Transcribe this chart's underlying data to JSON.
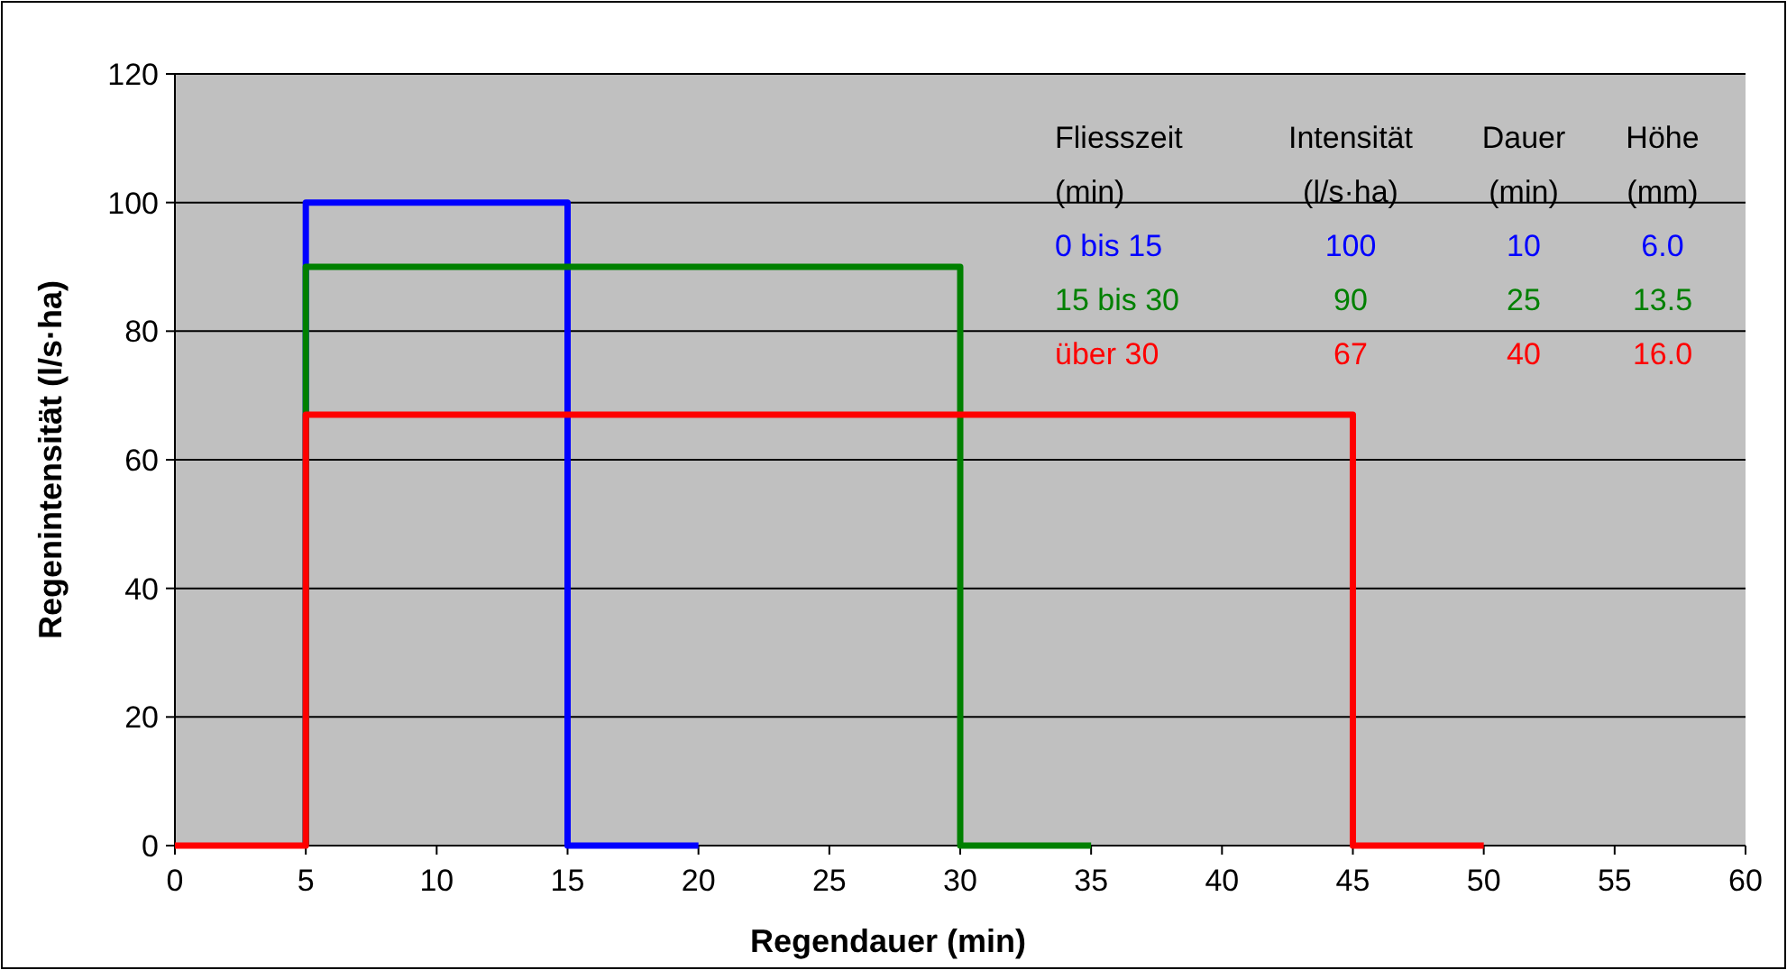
{
  "chart_data": {
    "type": "line",
    "xlabel": "Regendauer (min)",
    "ylabel": "Regenintensität (l/s·ha)",
    "xlim": [
      0,
      60
    ],
    "xticks": [
      0,
      5,
      10,
      15,
      20,
      25,
      30,
      35,
      40,
      45,
      50,
      55,
      60
    ],
    "ylim": [
      0,
      120
    ],
    "yticks": [
      0,
      20,
      40,
      60,
      80,
      100,
      120
    ],
    "grid": "y",
    "series": [
      {
        "color": "#0000ff",
        "x": [
          5,
          5,
          15,
          15,
          20
        ],
        "values": [
          0,
          100,
          100,
          0,
          0
        ]
      },
      {
        "color": "#008000",
        "x": [
          5,
          5,
          30,
          30,
          35
        ],
        "values": [
          0,
          90,
          90,
          0,
          0
        ]
      },
      {
        "color": "#ff0000",
        "x": [
          0,
          5,
          5,
          45,
          45,
          50
        ],
        "values": [
          0,
          0,
          67,
          67,
          0,
          0
        ]
      }
    ],
    "annotations": [
      "Fliesszeit",
      "Intensität",
      "Dauer",
      "Höhe",
      "(min)",
      "(l/s·ha)",
      "(min)",
      "(mm)",
      "0 bis 15",
      "100",
      "10",
      "6.0",
      "15 bis 30",
      "90",
      "25",
      "13.5",
      "über 30",
      "67",
      "40",
      "16.0"
    ]
  }
}
